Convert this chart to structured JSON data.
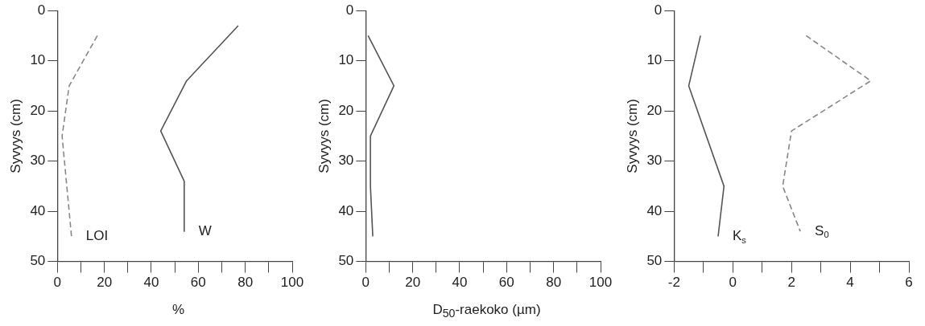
{
  "chart_data": [
    {
      "type": "line",
      "ylabel": "Syvyys (cm)",
      "xlabel": "%",
      "xlim": [
        0,
        100
      ],
      "xticks": [
        0,
        {
          "value": 10,
          "label": null
        },
        20,
        {
          "value": 30,
          "label": null
        },
        40,
        {
          "value": 50,
          "label": null
        },
        60,
        {
          "value": 70,
          "label": null
        },
        80,
        {
          "value": 90,
          "label": null
        },
        100
      ],
      "ylim": [
        50,
        0
      ],
      "yticks": [
        0,
        10,
        20,
        30,
        40,
        50
      ],
      "grid": false,
      "legend": false,
      "marker": "none",
      "series": [
        {
          "name": "LOI",
          "color": "#888888",
          "line_style": "dashed",
          "x": [
            17,
            5,
            2,
            4,
            6
          ],
          "values": [
            5,
            15,
            25,
            35,
            45
          ]
        },
        {
          "name": "W",
          "color": "#555555",
          "line_style": "solid",
          "x": [
            77,
            55,
            44,
            54,
            54
          ],
          "values": [
            3,
            14,
            24,
            34,
            44
          ]
        }
      ]
    },
    {
      "type": "line",
      "ylabel": "Syvyys (cm)",
      "xlabel": "D$_{50}$-raekoko (µm)",
      "xlim": [
        0,
        100
      ],
      "xticks": [
        0,
        {
          "value": 10,
          "label": null
        },
        20,
        {
          "value": 30,
          "label": null
        },
        40,
        {
          "value": 50,
          "label": null
        },
        60,
        {
          "value": 70,
          "label": null
        },
        80,
        {
          "value": 90,
          "label": null
        },
        100
      ],
      "ylim": [
        50,
        0
      ],
      "yticks": [
        0,
        10,
        20,
        30,
        40,
        50
      ],
      "grid": false,
      "legend": false,
      "marker": "none",
      "series": [
        {
          "color": "#555555",
          "line_style": "solid",
          "x": [
            1,
            12,
            2,
            2,
            3
          ],
          "values": [
            5,
            15,
            25,
            35,
            45
          ]
        }
      ]
    },
    {
      "type": "line",
      "ylabel": "Syvyys (cm)",
      "xlim": [
        -2,
        6
      ],
      "xticks": [
        -2,
        {
          "value": -1,
          "label": null
        },
        0,
        {
          "value": 1,
          "label": null
        },
        2,
        {
          "value": 3,
          "label": null
        },
        4,
        {
          "value": 5,
          "label": null
        },
        6
      ],
      "ylim": [
        50,
        0
      ],
      "yticks": [
        0,
        10,
        20,
        30,
        40,
        50
      ],
      "grid": false,
      "legend": false,
      "marker": "none",
      "series": [
        {
          "name": "K$_{s}$",
          "color": "#555555",
          "line_style": "solid",
          "x": [
            -1.1,
            -1.5,
            -0.3,
            -0.5
          ],
          "values": [
            5,
            15,
            35,
            45
          ]
        },
        {
          "name": "S$_{0}$",
          "color": "#888888",
          "line_style": "dashed",
          "x": [
            2.5,
            4.7,
            2.0,
            1.7,
            2.3
          ],
          "values": [
            5,
            14,
            24,
            35,
            44
          ]
        }
      ]
    }
  ]
}
